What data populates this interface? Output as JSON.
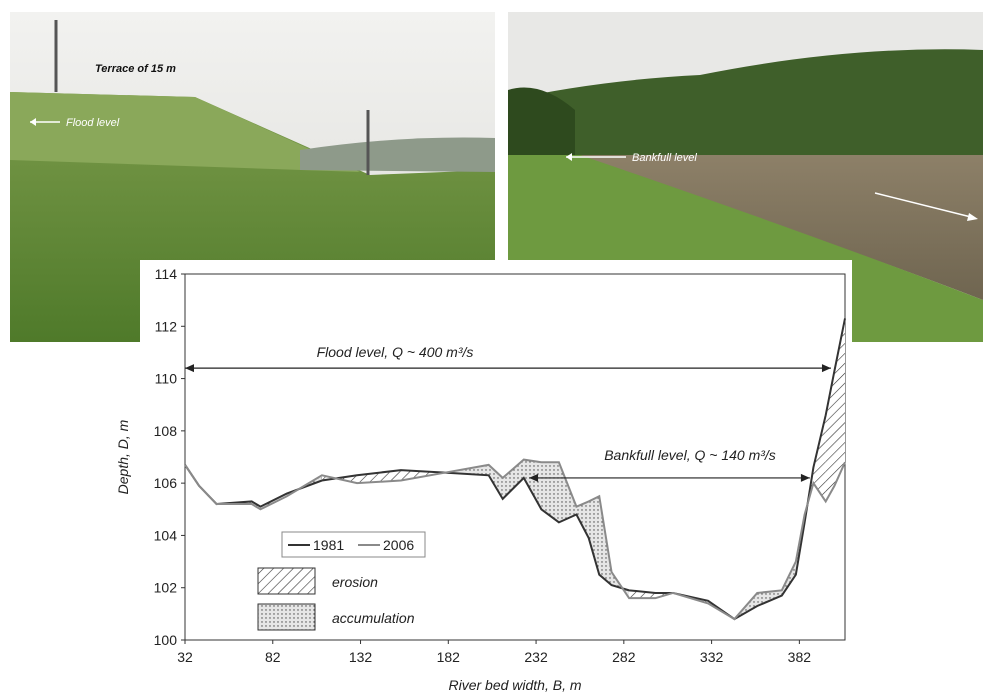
{
  "photos": {
    "left": {
      "terrace": "Terrace of 15 m",
      "flood": "Flood level"
    },
    "right": {
      "bankfull": "Bankfull level"
    }
  },
  "chart_data": {
    "type": "line",
    "xlabel": "River bed width, B, m",
    "ylabel": "Depth, D, m",
    "x": [
      32,
      40,
      50,
      70,
      75,
      90,
      110,
      130,
      155,
      180,
      205,
      213,
      225,
      235,
      245,
      255,
      262,
      268,
      275,
      285,
      300,
      310,
      330,
      345,
      358,
      372,
      380,
      385,
      390,
      397,
      402,
      408
    ],
    "series": [
      {
        "name": "1981",
        "color": "#333333",
        "values": [
          106.7,
          105.9,
          105.2,
          105.3,
          105.1,
          105.6,
          106.1,
          106.3,
          106.5,
          106.4,
          106.3,
          105.4,
          106.2,
          105.0,
          104.5,
          104.8,
          103.9,
          102.5,
          102.1,
          101.9,
          101.8,
          101.8,
          101.5,
          100.8,
          101.3,
          101.7,
          102.5,
          104.5,
          106.6,
          108.6,
          110.3,
          112.3
        ]
      },
      {
        "name": "2006",
        "color": "#8a8a8a",
        "values": [
          106.7,
          105.9,
          105.2,
          105.2,
          105.0,
          105.5,
          106.3,
          106.0,
          106.1,
          106.4,
          106.7,
          106.2,
          106.9,
          106.8,
          106.8,
          105.1,
          105.3,
          105.5,
          102.6,
          101.6,
          101.6,
          101.8,
          101.4,
          100.8,
          101.8,
          101.9,
          103.0,
          104.8,
          106.0,
          105.3,
          105.9,
          106.8
        ]
      }
    ],
    "areas": [
      {
        "name": "erosion"
      },
      {
        "name": "accumulation"
      }
    ],
    "annotations": [
      {
        "text": "Flood level, Q ~ 400 m³/s",
        "x": [
          32,
          400
        ],
        "y": 110.4
      },
      {
        "text": "Bankfull level, Q ~ 140 m³/s",
        "x": [
          228,
          388
        ],
        "y": 106.2
      }
    ],
    "xlim": [
      32,
      408
    ],
    "xticks": [
      32,
      82,
      132,
      182,
      232,
      282,
      332,
      382
    ],
    "ylim": [
      100,
      114
    ],
    "yticks": [
      100,
      102,
      104,
      106,
      108,
      110,
      112,
      114
    ]
  }
}
